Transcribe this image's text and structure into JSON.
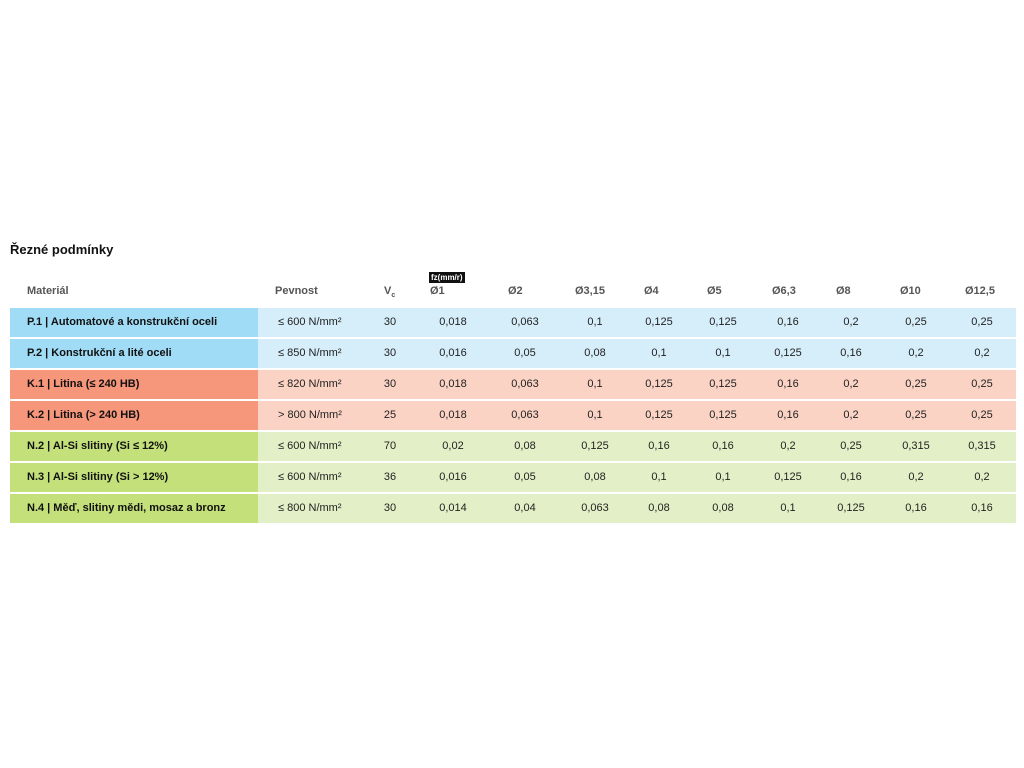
{
  "title": "Řezné podmínky",
  "table": {
    "fz_label": "fz(mm/r)",
    "headers": [
      "Materiál",
      "Pevnost",
      {
        "text": "V",
        "sub": "c"
      },
      "Ø1",
      "Ø2",
      "Ø3,15",
      "Ø4",
      "Ø5",
      "Ø6,3",
      "Ø8",
      "Ø10",
      "Ø12,5"
    ],
    "rows": [
      {
        "accent": "#a0dcf5",
        "tint": "#d6eefa",
        "cells": [
          "P.1 | Automatové a konstrukční oceli",
          "≤ 600 N/mm²",
          "30",
          "0,018",
          "0,063",
          "0,1",
          "0,125",
          "0,125",
          "0,16",
          "0,2",
          "0,25",
          "0,25"
        ]
      },
      {
        "accent": "#a0dcf5",
        "tint": "#d6eefa",
        "cells": [
          "P.2 | Konstrukční a lité oceli",
          "≤ 850 N/mm²",
          "30",
          "0,016",
          "0,05",
          "0,08",
          "0,1",
          "0,1",
          "0,125",
          "0,16",
          "0,2",
          "0,2"
        ]
      },
      {
        "accent": "#f6967a",
        "tint": "#fbd3c5",
        "cells": [
          "K.1 | Litina (≤ 240 HB)",
          "≤ 820 N/mm²",
          "30",
          "0,018",
          "0,063",
          "0,1",
          "0,125",
          "0,125",
          "0,16",
          "0,2",
          "0,25",
          "0,25"
        ]
      },
      {
        "accent": "#f6967a",
        "tint": "#fbd3c5",
        "cells": [
          "K.2 | Litina (> 240 HB)",
          "> 800 N/mm²",
          "25",
          "0,018",
          "0,063",
          "0,1",
          "0,125",
          "0,125",
          "0,16",
          "0,2",
          "0,25",
          "0,25"
        ]
      },
      {
        "accent": "#c4e07a",
        "tint": "#e3f0c7",
        "cells": [
          "N.2 | Al-Si slitiny (Si ≤ 12%)",
          "≤ 600 N/mm²",
          "70",
          "0,02",
          "0,08",
          "0,125",
          "0,16",
          "0,16",
          "0,2",
          "0,25",
          "0,315",
          "0,315"
        ]
      },
      {
        "accent": "#c4e07a",
        "tint": "#e3f0c7",
        "cells": [
          "N.3 | Al-Si slitiny (Si > 12%)",
          "≤ 600 N/mm²",
          "36",
          "0,016",
          "0,05",
          "0,08",
          "0,1",
          "0,1",
          "0,125",
          "0,16",
          "0,2",
          "0,2"
        ]
      },
      {
        "accent": "#c4e07a",
        "tint": "#e3f0c7",
        "cells": [
          "N.4 | Měď, slitiny mědi, mosaz a bronz",
          "≤ 800 N/mm²",
          "30",
          "0,014",
          "0,04",
          "0,063",
          "0,08",
          "0,08",
          "0,1",
          "0,125",
          "0,16",
          "0,16"
        ]
      }
    ]
  }
}
